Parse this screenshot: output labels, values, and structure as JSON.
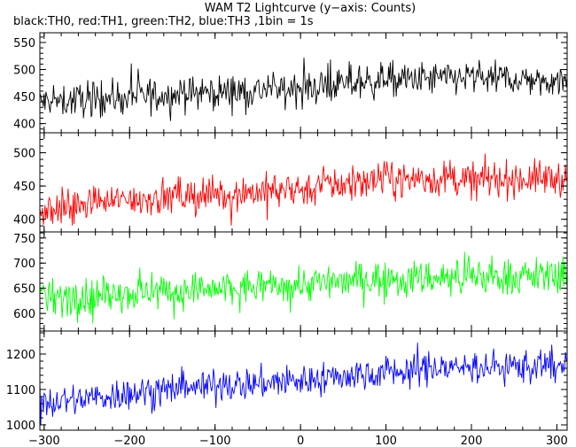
{
  "title": "WAM T2 Lightcurve (y−axis: Counts)",
  "subtitle": "black:TH0, red:TH1, green:TH2, blue:TH3 ,1bin = 1s",
  "chart_data": {
    "type": "line",
    "x": {
      "min": -305,
      "max": 312,
      "step": 1,
      "ticks": [
        -300,
        -200,
        -100,
        0,
        100,
        200,
        300
      ],
      "tick_labels": [
        "−300",
        "−200",
        "−100",
        "0",
        "100",
        "200",
        "300"
      ]
    },
    "series": [
      {
        "name": "TH0",
        "color": "#000000",
        "ylim": [
          383,
          568
        ],
        "ticks": [
          400,
          450,
          500,
          550
        ],
        "tick_labels": [
          "400",
          "450",
          "500",
          "550"
        ],
        "trend": [
          [
            -300,
            440
          ],
          [
            -200,
            450
          ],
          [
            -100,
            458
          ],
          [
            0,
            465
          ],
          [
            100,
            480
          ],
          [
            200,
            485
          ],
          [
            300,
            480
          ]
        ],
        "noise": 28,
        "spike": 12
      },
      {
        "name": "TH1",
        "color": "#ff0000",
        "ylim": [
          381,
          530
        ],
        "ticks": [
          400,
          450,
          500
        ],
        "tick_labels": [
          "400",
          "450",
          "500"
        ],
        "trend": [
          [
            -300,
            415
          ],
          [
            -200,
            430
          ],
          [
            -100,
            438
          ],
          [
            0,
            445
          ],
          [
            100,
            460
          ],
          [
            200,
            460
          ],
          [
            300,
            462
          ]
        ],
        "noise": 24,
        "spike": 10
      },
      {
        "name": "TH2",
        "color": "#00ff00",
        "ylim": [
          565,
          762
        ],
        "ticks": [
          600,
          650,
          700,
          750
        ],
        "tick_labels": [
          "600",
          "650",
          "700",
          "750"
        ],
        "trend": [
          [
            -300,
            630
          ],
          [
            -200,
            640
          ],
          [
            -100,
            648
          ],
          [
            0,
            658
          ],
          [
            100,
            670
          ],
          [
            200,
            672
          ],
          [
            300,
            675
          ]
        ],
        "noise": 32,
        "spike": 14
      },
      {
        "name": "TH3",
        "color": "#0000ff",
        "ylim": [
          985,
          1265
        ],
        "ticks": [
          1000,
          1100,
          1200
        ],
        "tick_labels": [
          "1000",
          "1100",
          "1200"
        ],
        "trend": [
          [
            -300,
            1060
          ],
          [
            -200,
            1090
          ],
          [
            -100,
            1110
          ],
          [
            0,
            1125
          ],
          [
            100,
            1150
          ],
          [
            200,
            1165
          ],
          [
            300,
            1165
          ]
        ],
        "noise": 42,
        "spike": 18
      }
    ]
  }
}
